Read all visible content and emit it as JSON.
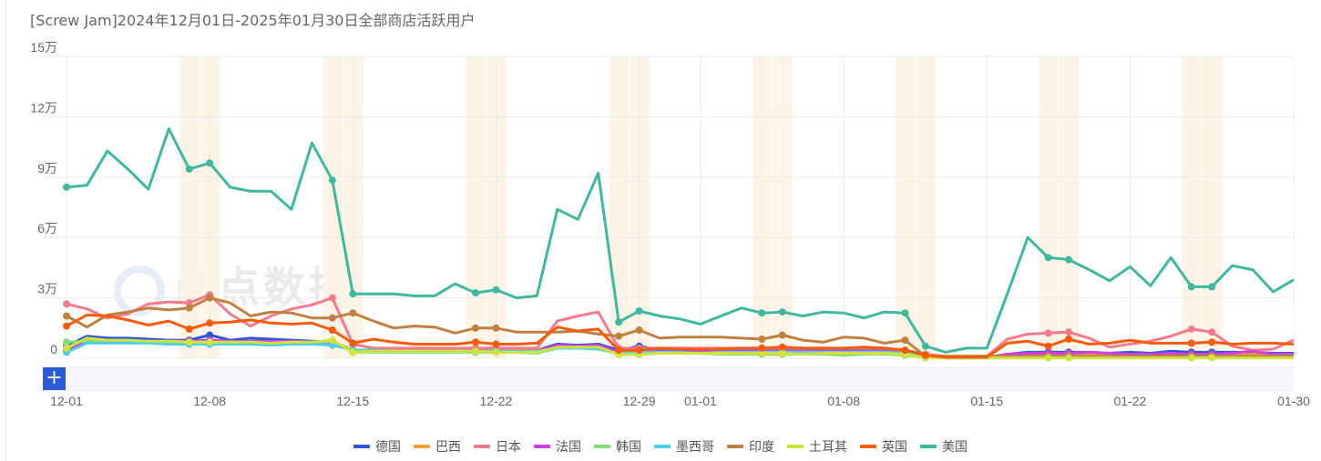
{
  "chart_data": {
    "type": "line",
    "title": "[Screw Jam]2024年12月01日-2025年01月30日全部商店活跃用户",
    "y_ticks": [
      {
        "value": 0,
        "label": "0"
      },
      {
        "value": 30000,
        "label": "3万"
      },
      {
        "value": 60000,
        "label": "6万"
      },
      {
        "value": 90000,
        "label": "9万"
      },
      {
        "value": 120000,
        "label": "12万"
      },
      {
        "value": 150000,
        "label": "15万"
      }
    ],
    "ylim": [
      0,
      150000
    ],
    "x_tick_labels": [
      "12-01",
      "12-08",
      "12-15",
      "12-22",
      "12-29",
      "01-01",
      "01-08",
      "01-15",
      "01-22",
      "01-30"
    ],
    "categories": [
      "12-01",
      "12-02",
      "12-03",
      "12-04",
      "12-05",
      "12-06",
      "12-07",
      "12-08",
      "12-09",
      "12-10",
      "12-11",
      "12-12",
      "12-13",
      "12-14",
      "12-15",
      "12-16",
      "12-17",
      "12-18",
      "12-19",
      "12-20",
      "12-21",
      "12-22",
      "12-23",
      "12-24",
      "12-25",
      "12-26",
      "12-27",
      "12-28",
      "12-29",
      "12-30",
      "12-31",
      "01-01",
      "01-02",
      "01-03",
      "01-04",
      "01-05",
      "01-06",
      "01-07",
      "01-08",
      "01-09",
      "01-10",
      "01-11",
      "01-12",
      "01-13",
      "01-14",
      "01-15",
      "01-16",
      "01-17",
      "01-18",
      "01-19",
      "01-20",
      "01-21",
      "01-22",
      "01-23",
      "01-24",
      "01-25",
      "01-26",
      "01-27",
      "01-28",
      "01-29",
      "01-30"
    ],
    "highlighted_dates": [
      "12-07",
      "12-08",
      "12-14",
      "12-15",
      "12-21",
      "12-22",
      "12-28",
      "12-29",
      "01-04",
      "01-05",
      "01-11",
      "01-12",
      "01-18",
      "01-19",
      "01-25",
      "01-26"
    ],
    "grid": true,
    "legend_position": "bottom",
    "series": [
      {
        "name": "德国",
        "color": "#2c56d6",
        "values": [
          6000,
          11000,
          10000,
          10000,
          9500,
          9000,
          9000,
          11500,
          9000,
          10000,
          9500,
          9000,
          8500,
          8000,
          4000,
          4000,
          4000,
          4000,
          4000,
          4000,
          4000,
          4000,
          4000,
          4000,
          7000,
          6500,
          7000,
          4000,
          6000,
          4000,
          4000,
          4000,
          4000,
          4000,
          4000,
          4000,
          4000,
          4000,
          4000,
          4000,
          4000,
          3000,
          500,
          300,
          300,
          500,
          2000,
          3000,
          3000,
          3000,
          3000,
          2500,
          3000,
          2500,
          3500,
          3000,
          3000,
          3000,
          3000,
          2500,
          2500
        ]
      },
      {
        "name": "巴西",
        "color": "#f5a033",
        "values": [
          5000,
          9500,
          9000,
          8500,
          8000,
          8500,
          8500,
          8000,
          8000,
          8000,
          8000,
          8000,
          8000,
          8500,
          4000,
          4000,
          4000,
          4000,
          4000,
          4000,
          4000,
          4000,
          4000,
          4000,
          6000,
          6000,
          6000,
          3000,
          3500,
          3500,
          3500,
          3500,
          3500,
          3500,
          3500,
          3500,
          3500,
          3500,
          3500,
          3500,
          3500,
          3000,
          300,
          200,
          200,
          300,
          1500,
          2000,
          2000,
          2000,
          2000,
          2000,
          2000,
          2000,
          2000,
          2000,
          2000,
          2000,
          2000,
          2000,
          2000
        ]
      },
      {
        "name": "日本",
        "color": "#f67a8c",
        "values": [
          27000,
          24500,
          20000,
          22000,
          27000,
          28000,
          27500,
          31500,
          22000,
          16000,
          21000,
          24500,
          26500,
          30000,
          7000,
          5000,
          5000,
          5000,
          5000,
          5000,
          5000,
          5000,
          5000,
          5000,
          18500,
          21000,
          23000,
          5000,
          5000,
          5000,
          5000,
          5000,
          5000,
          5000,
          5000,
          5000,
          5000,
          5000,
          5000,
          5000,
          5000,
          4000,
          2000,
          1000,
          1000,
          1000,
          9500,
          12000,
          12500,
          13000,
          10000,
          5500,
          7000,
          8500,
          11000,
          14500,
          13000,
          6000,
          4000,
          4500,
          9000
        ]
      },
      {
        "name": "法国",
        "color": "#d03de0",
        "values": [
          4000,
          9000,
          9000,
          9000,
          8500,
          8500,
          8500,
          9000,
          8500,
          8500,
          8500,
          8500,
          8000,
          8000,
          3500,
          3500,
          3500,
          3500,
          3500,
          3500,
          3500,
          3500,
          3500,
          3500,
          6500,
          6000,
          6500,
          3000,
          3500,
          3500,
          3500,
          3500,
          3500,
          3500,
          3500,
          3500,
          3500,
          3500,
          3500,
          3500,
          3500,
          2500,
          300,
          200,
          200,
          300,
          2000,
          2500,
          2500,
          2500,
          3000,
          2500,
          2000,
          2000,
          2500,
          2000,
          2000,
          2500,
          3500,
          2000,
          2000
        ]
      },
      {
        "name": "韩国",
        "color": "#7fe07a",
        "values": [
          8000,
          8500,
          9000,
          8500,
          8000,
          8000,
          8000,
          8000,
          7500,
          7000,
          7000,
          7500,
          8000,
          8500,
          3000,
          3000,
          3000,
          3000,
          3000,
          3000,
          3000,
          3000,
          3000,
          2500,
          5000,
          5000,
          5500,
          2000,
          2000,
          2500,
          2500,
          2500,
          2000,
          2000,
          2000,
          2000,
          2000,
          2000,
          1500,
          2000,
          2000,
          1500,
          300,
          200,
          200,
          200,
          500,
          1000,
          1000,
          1000,
          1000,
          1000,
          800,
          800,
          1000,
          1000,
          1000,
          1000,
          1000,
          1000,
          1000
        ]
      },
      {
        "name": "墨西哥",
        "color": "#4bd0ea",
        "values": [
          3000,
          7500,
          7500,
          7500,
          7500,
          7000,
          7000,
          7000,
          7000,
          7000,
          6500,
          7000,
          7000,
          6500,
          4000,
          4000,
          3500,
          3500,
          3500,
          3500,
          3500,
          3500,
          3500,
          3500,
          5000,
          5000,
          4500,
          2500,
          3000,
          3000,
          3000,
          2500,
          3000,
          3000,
          3000,
          3000,
          3000,
          3000,
          3000,
          3000,
          3000,
          2500,
          300,
          200,
          200,
          200,
          500,
          500,
          500,
          500,
          500,
          500,
          500,
          500,
          500,
          500,
          500,
          500,
          500,
          500,
          500
        ]
      },
      {
        "name": "印度",
        "color": "#c08040",
        "values": [
          21000,
          15500,
          21500,
          23000,
          25000,
          24000,
          25000,
          30000,
          27500,
          21000,
          23000,
          22500,
          20000,
          20000,
          22500,
          18500,
          15000,
          16000,
          15500,
          12500,
          15000,
          15000,
          13000,
          13000,
          13000,
          13500,
          12000,
          11000,
          14000,
          10000,
          10500,
          10500,
          10500,
          10000,
          9500,
          11500,
          9000,
          8000,
          10500,
          10000,
          7500,
          9000,
          1000,
          1000,
          1000,
          1000,
          1000,
          1000,
          1000,
          1000,
          1000,
          1000,
          1000,
          1000,
          1000,
          1000,
          1000,
          1000,
          1000,
          1000,
          1000
        ]
      },
      {
        "name": "土耳其",
        "color": "#cfe33c",
        "values": [
          5000,
          10000,
          9000,
          9000,
          8500,
          8500,
          8000,
          8000,
          8000,
          8000,
          7500,
          8000,
          8000,
          9000,
          3000,
          3500,
          3500,
          3500,
          3500,
          3500,
          3500,
          3000,
          3000,
          3000,
          5500,
          5500,
          5500,
          2000,
          2000,
          2500,
          2500,
          2500,
          2500,
          2500,
          2500,
          2500,
          2000,
          2500,
          2500,
          2500,
          2500,
          2000,
          200,
          200,
          200,
          200,
          200,
          200,
          200,
          200,
          200,
          200,
          200,
          200,
          200,
          200,
          200,
          200,
          200,
          200,
          200
        ]
      },
      {
        "name": "英国",
        "color": "#fa5a0a",
        "values": [
          16000,
          21500,
          21000,
          19000,
          16500,
          18500,
          14500,
          17500,
          18000,
          19000,
          17500,
          17000,
          17500,
          14000,
          7500,
          9500,
          8000,
          7000,
          7000,
          7000,
          8000,
          7000,
          7000,
          7500,
          15500,
          13500,
          14500,
          4000,
          4000,
          5000,
          4500,
          4500,
          4500,
          5000,
          5000,
          5500,
          5000,
          5000,
          5000,
          5500,
          5000,
          4000,
          1500,
          500,
          500,
          500,
          7500,
          8500,
          6000,
          9500,
          7000,
          7500,
          9000,
          7500,
          7500,
          7500,
          8000,
          7000,
          7500,
          7500,
          7000
        ]
      },
      {
        "name": "美国",
        "color": "#3fb8a0",
        "values": [
          85000,
          86000,
          103000,
          94000,
          84000,
          114000,
          94000,
          97000,
          85000,
          83000,
          83000,
          74000,
          107000,
          88500,
          32000,
          32000,
          32000,
          31000,
          31000,
          37000,
          32500,
          34000,
          30000,
          31000,
          74000,
          69000,
          92000,
          18000,
          23500,
          21000,
          19500,
          17000,
          21000,
          25000,
          22500,
          23000,
          21000,
          23000,
          22500,
          20000,
          23000,
          22500,
          6000,
          3000,
          5000,
          5000,
          32000,
          60000,
          50000,
          49000,
          44000,
          38500,
          45500,
          36000,
          50000,
          35500,
          35500,
          46000,
          44000,
          33000,
          39000
        ]
      }
    ]
  },
  "zoom": {
    "button_label": "+"
  },
  "watermark": {
    "text": "点点数据"
  }
}
